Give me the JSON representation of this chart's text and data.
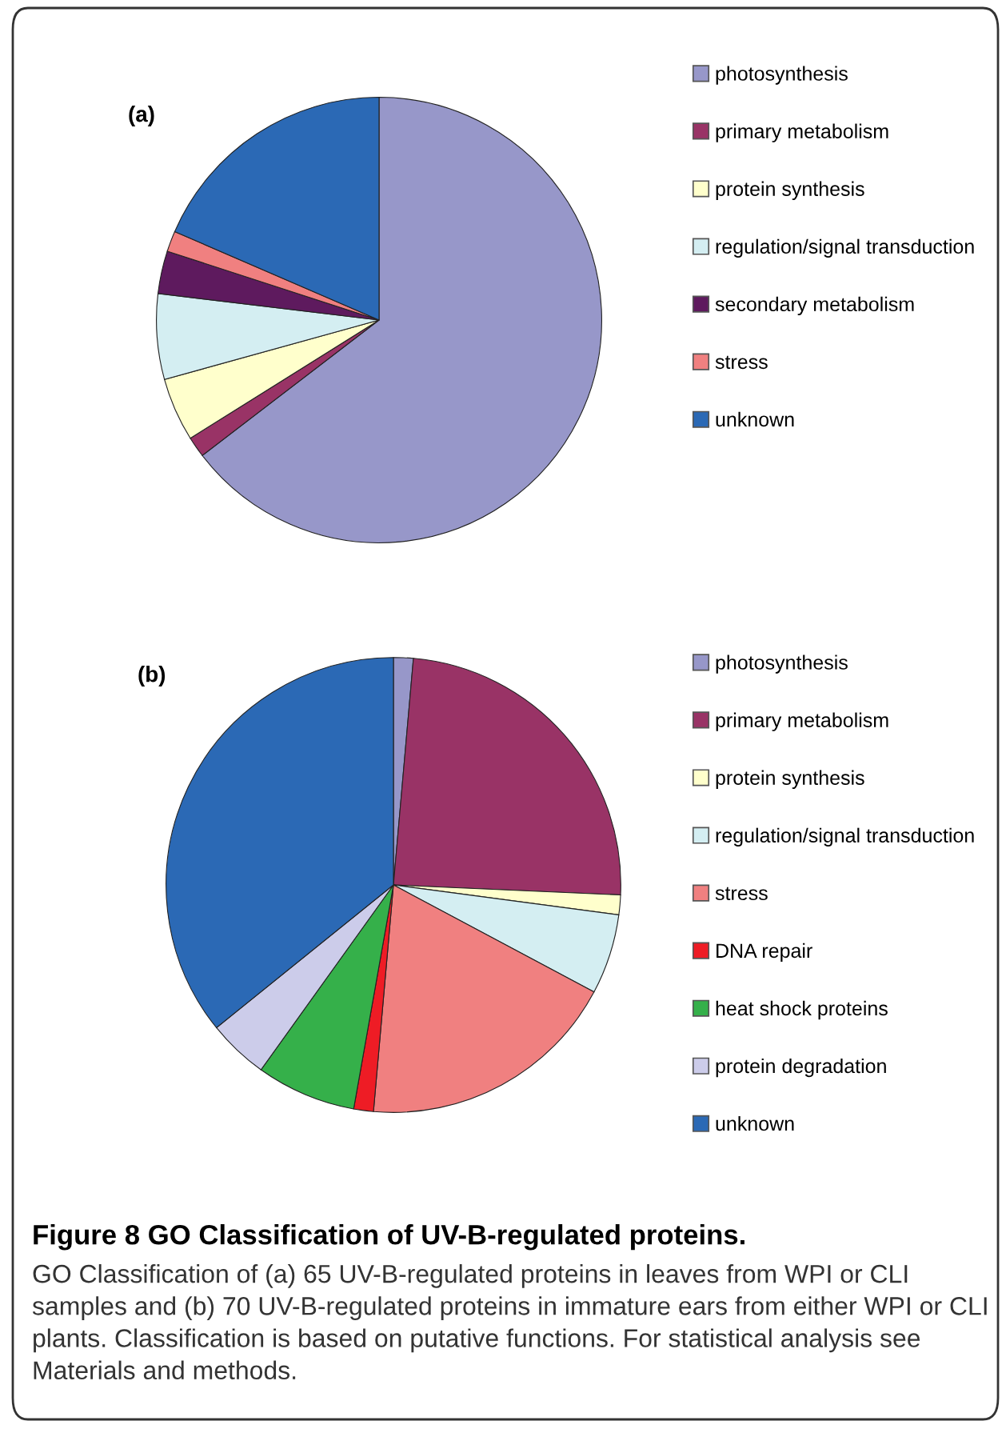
{
  "chart_data": [
    {
      "type": "pie",
      "title": "(a)",
      "legend": "right",
      "categories": [
        "photosynthesis",
        "primary metabolism",
        "protein synthesis",
        "regulation/signal transduction",
        "secondary metabolism",
        "stress",
        "unknown"
      ],
      "values": [
        64.6,
        1.5,
        4.6,
        6.2,
        3.1,
        1.5,
        18.5
      ],
      "colors": [
        "#9797c9",
        "#993366",
        "#ffffcc",
        "#d4eef2",
        "#5e1a5e",
        "#f08080",
        "#2b69b5"
      ]
    },
    {
      "type": "pie",
      "title": "(b)",
      "legend": "right",
      "categories": [
        "photosynthesis",
        "primary metabolism",
        "protein synthesis",
        "regulation/signal transduction",
        "stress",
        "DNA repair",
        "heat shock proteins",
        "protein degradation",
        "unknown"
      ],
      "values": [
        1.4,
        24.3,
        1.4,
        5.7,
        18.6,
        1.4,
        7.1,
        4.3,
        35.8
      ],
      "colors": [
        "#9797c9",
        "#993366",
        "#ffffcc",
        "#d4eef2",
        "#f08080",
        "#ee1c25",
        "#35b04a",
        "#ccccea",
        "#2b69b5"
      ],
      "annotations": [
        "Figure 8 GO Classification of UV-B-regulated proteins.",
        "GO Classification of (a) 65 UV-B-regulated proteins in leaves from WPI or CLI samples and (b) 70 UV-B-regulated proteins in immature ears from either WPI or CLI plants. Classification is based on putative functions. For statistical analysis see Materials and methods."
      ]
    }
  ]
}
